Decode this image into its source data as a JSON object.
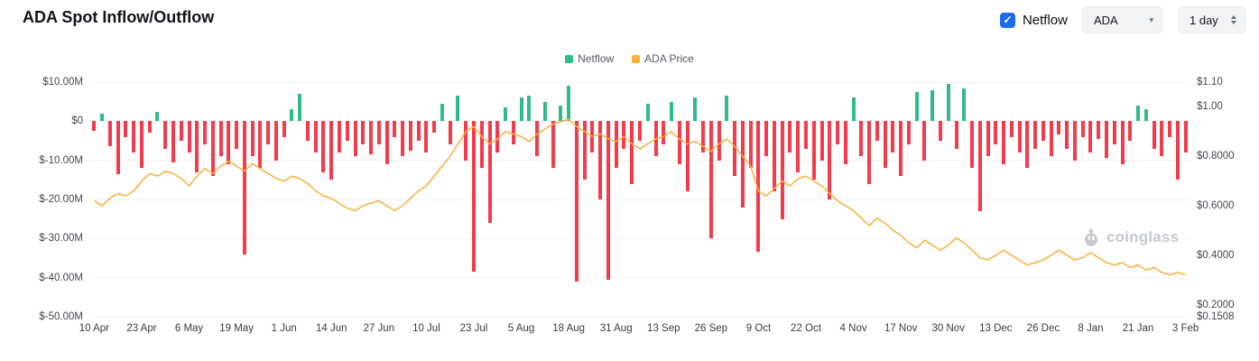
{
  "header": {
    "title": "ADA Spot Inflow/Outflow"
  },
  "controls": {
    "netflow_label": "Netflow",
    "symbol_value": "ADA",
    "interval_value": "1 day"
  },
  "colors": {
    "accent_blue": "#1e6bf1",
    "bar_positive": "#2fbd85",
    "bar_negative": "#f23c4c",
    "price_line": "#f9af3b"
  },
  "legend": [
    {
      "label": "Netflow",
      "color": "#2fbd85"
    },
    {
      "label": "ADA Price",
      "color": "#f9af3b"
    }
  ],
  "watermark": {
    "text": "coinglass"
  },
  "chart_data": {
    "type": "bar",
    "title": "ADA Spot Inflow/Outflow",
    "grid": "horizontal",
    "legend_position": "top-center",
    "left_axis": {
      "max": 10,
      "min": -50,
      "tick_values": [
        10,
        0,
        -10,
        -20,
        -30,
        -40,
        -50
      ],
      "tick_labels": [
        "$10.00M",
        "$0",
        "$-10.00M",
        "$-20.00M",
        "$-30.00M",
        "$-40.00M",
        "$-50.00M"
      ]
    },
    "right_axis": {
      "max": 1.1,
      "min": 0.1508,
      "tick_values": [
        1.1,
        1.0,
        0.8,
        0.6,
        0.4,
        0.2,
        0.1508
      ],
      "tick_labels": [
        "$1.10",
        "$1.00",
        "$0.8000",
        "$0.6000",
        "$0.4000",
        "$0.2000",
        "$0.1508"
      ]
    },
    "x_ticks": {
      "labels": [
        "10 Apr",
        "23 Apr",
        "6 May",
        "19 May",
        "1 Jun",
        "14 Jun",
        "27 Jun",
        "10 Jul",
        "23 Jul",
        "5 Aug",
        "18 Aug",
        "31 Aug",
        "13 Sep",
        "26 Sep",
        "9 Oct",
        "22 Oct",
        "4 Nov",
        "17 Nov",
        "30 Nov",
        "13 Dec",
        "26 Dec",
        "8 Jan",
        "21 Jan",
        "3 Feb"
      ],
      "indices": [
        0,
        6,
        12,
        18,
        24,
        30,
        36,
        42,
        48,
        54,
        60,
        66,
        72,
        78,
        84,
        90,
        96,
        102,
        108,
        114,
        120,
        126,
        132,
        138
      ]
    },
    "series": [
      {
        "name": "Netflow",
        "type": "bar",
        "axis": "left",
        "unit": "USD millions",
        "color_positive": "#2fbd85",
        "color_negative": "#f23c4c",
        "values": [
          -2.5,
          2,
          -6.5,
          -13.5,
          -4,
          -8,
          -12,
          -3,
          2.5,
          -7,
          -10.5,
          -5,
          -8,
          -13,
          -6,
          -14,
          -9,
          -11,
          -7,
          -34,
          -9,
          -12,
          -6,
          -10,
          -4,
          3,
          7,
          -5,
          -8,
          -13,
          -15,
          -8,
          -5,
          -9,
          -6,
          -8.5,
          -6,
          -11,
          -4,
          -9,
          -7.5,
          -5,
          -8,
          -3,
          4.5,
          -6,
          6.5,
          -10,
          -38.5,
          -12,
          -26,
          -8,
          3.5,
          -6,
          6,
          6.5,
          -9,
          5,
          -12,
          4,
          9,
          -41,
          -15,
          -8,
          -20,
          -40.5,
          -12,
          -7,
          -16,
          -5,
          4.5,
          -9,
          -6,
          5,
          -11,
          -18,
          6,
          -8,
          -30,
          -10,
          6.5,
          -14,
          -22,
          -12,
          -33.5,
          -9,
          -18,
          -25,
          -8,
          -13,
          -7,
          -15,
          -10,
          -20,
          -6,
          -11,
          6,
          -9,
          -16,
          -5,
          -12,
          -8,
          -14,
          -6,
          7.5,
          -10,
          8,
          -5,
          9.5,
          -7,
          8.5,
          -12,
          -23,
          -9,
          -6,
          -11,
          -4,
          -8,
          -12,
          -7,
          -5,
          -9,
          -3.5,
          -7,
          -10,
          -4,
          -8,
          -4.5,
          -9.5,
          -6,
          -11,
          -5,
          4,
          3,
          -7,
          -9,
          -4,
          -15,
          -8
        ]
      },
      {
        "name": "ADA Price",
        "type": "line",
        "axis": "right",
        "unit": "USD",
        "color": "#f9af3b",
        "values": [
          0.62,
          0.6,
          0.63,
          0.65,
          0.64,
          0.66,
          0.7,
          0.73,
          0.72,
          0.74,
          0.73,
          0.71,
          0.68,
          0.72,
          0.75,
          0.73,
          0.76,
          0.78,
          0.76,
          0.74,
          0.77,
          0.75,
          0.73,
          0.71,
          0.7,
          0.72,
          0.71,
          0.69,
          0.66,
          0.64,
          0.63,
          0.61,
          0.59,
          0.58,
          0.6,
          0.61,
          0.62,
          0.6,
          0.58,
          0.6,
          0.63,
          0.66,
          0.68,
          0.72,
          0.76,
          0.8,
          0.85,
          0.9,
          0.92,
          0.88,
          0.85,
          0.87,
          0.9,
          0.89,
          0.88,
          0.86,
          0.89,
          0.91,
          0.93,
          0.94,
          0.95,
          0.92,
          0.9,
          0.88,
          0.89,
          0.87,
          0.86,
          0.88,
          0.85,
          0.83,
          0.85,
          0.87,
          0.88,
          0.9,
          0.87,
          0.85,
          0.86,
          0.84,
          0.82,
          0.85,
          0.87,
          0.84,
          0.8,
          0.76,
          0.66,
          0.64,
          0.67,
          0.7,
          0.68,
          0.71,
          0.72,
          0.7,
          0.68,
          0.65,
          0.62,
          0.6,
          0.58,
          0.55,
          0.52,
          0.55,
          0.53,
          0.5,
          0.48,
          0.45,
          0.43,
          0.46,
          0.44,
          0.42,
          0.44,
          0.47,
          0.45,
          0.42,
          0.39,
          0.38,
          0.4,
          0.42,
          0.4,
          0.38,
          0.36,
          0.37,
          0.38,
          0.4,
          0.42,
          0.4,
          0.38,
          0.39,
          0.41,
          0.39,
          0.37,
          0.36,
          0.37,
          0.35,
          0.36,
          0.34,
          0.35,
          0.33,
          0.32,
          0.33,
          0.32
        ]
      }
    ]
  }
}
